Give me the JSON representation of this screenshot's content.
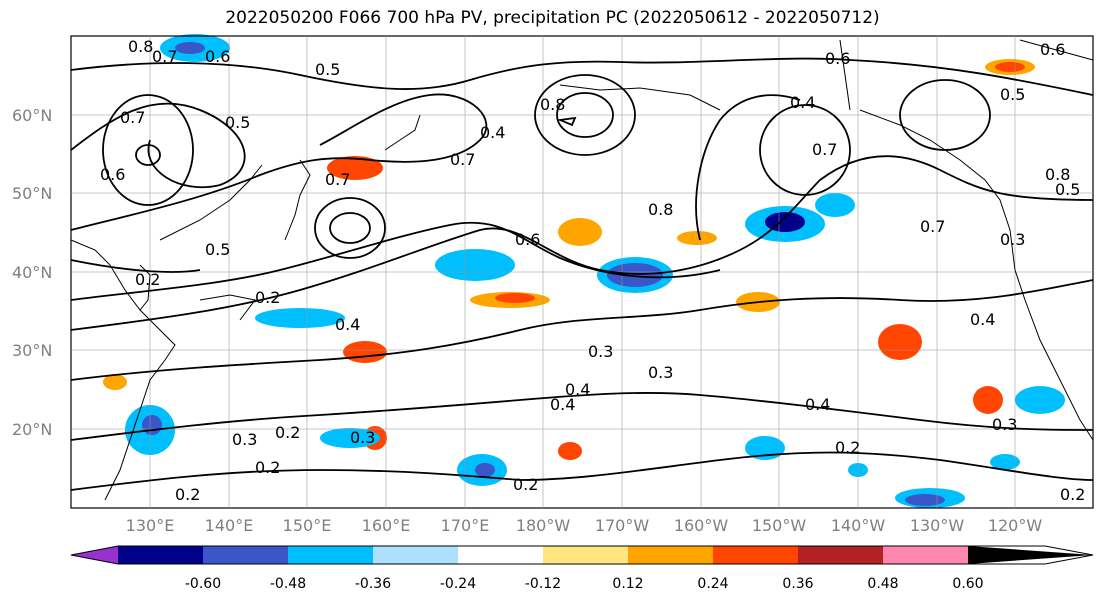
{
  "title": "2022050200 F066 700 hPa PV, precipitation PC (2022050612 - 2022050712)",
  "lat_labels": [
    "60°N",
    "50°N",
    "40°N",
    "30°N",
    "20°N"
  ],
  "lon_labels": [
    "130°E",
    "140°E",
    "150°E",
    "160°E",
    "170°E",
    "180°W",
    "170°W",
    "160°W",
    "150°W",
    "140°W",
    "130°W",
    "120°W"
  ],
  "colorbar": {
    "ticks": [
      "-0.60",
      "-0.48",
      "-0.36",
      "-0.24",
      "-0.12",
      "0.12",
      "0.24",
      "0.36",
      "0.48",
      "0.60"
    ],
    "colors": [
      "#9932CC",
      "#00008B",
      "#3A56C8",
      "#00BFFF",
      "#ADDFFF",
      "#FFFFFF",
      "#FFE680",
      "#FFA500",
      "#FF4500",
      "#B22222",
      "#FF88B0"
    ]
  },
  "contour_labels": [
    "0.8",
    "0.7",
    "0.6",
    "0.5",
    "0.7",
    "0.5",
    "0.4",
    "0.7",
    "0.8",
    "0.6",
    "0.4",
    "0.7",
    "0.6",
    "0.8",
    "0.5",
    "0.5",
    "0.6",
    "0.4",
    "0.7",
    "0.6",
    "0.7",
    "0.8",
    "0.5",
    "0.2",
    "0.2",
    "0.4",
    "0.3",
    "0.3",
    "0.4",
    "0.4",
    "0.2",
    "0.3",
    "0.3",
    "0.2",
    "0.2",
    "0.2",
    "0.3",
    "0.4",
    "0.2",
    "0.3",
    "0.2"
  ]
}
